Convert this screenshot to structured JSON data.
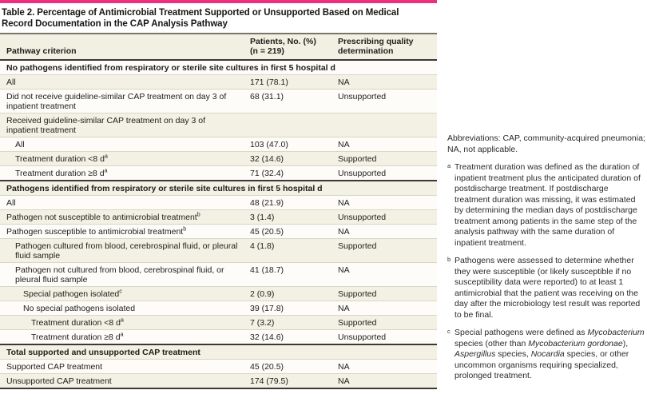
{
  "title": "Table 2. Percentage of Antimicrobial Treatment Supported or Unsupported Based on Medical Record Documentation in the CAP Analysis Pathway",
  "colors": {
    "accent_bar": "#ee2f7f",
    "row_shade_beige": "#f3f1e3",
    "row_shade_white": "#fdfcf8",
    "section_rule": "#3a3935"
  },
  "table": {
    "columns": [
      {
        "label": "Pathway criterion"
      },
      {
        "lines": [
          "Patients, No. (%)",
          "(n = 219)"
        ]
      },
      {
        "lines": [
          "Prescribing quality",
          "determination"
        ]
      }
    ],
    "rows": [
      {
        "type": "section",
        "label": "No pathogens identified from respiratory or sterile site cultures in first 5 hospital d",
        "shade": "white"
      },
      {
        "type": "data",
        "label": "All",
        "sup": "",
        "indent": 0,
        "patients": "171 (78.1)",
        "quality": "NA",
        "shade": "beige"
      },
      {
        "type": "data",
        "label": "Did not receive guideline-similar CAP treatment on day 3 of inpatient treatment",
        "sup": "",
        "indent": 0,
        "patients": "68 (31.1)",
        "quality": "Unsupported",
        "shade": "white"
      },
      {
        "type": "data",
        "label": "Received guideline-similar CAP treatment on day 3 of inpatient treatment",
        "sup": "",
        "indent": 0,
        "patients": "",
        "quality": "",
        "shade": "beige"
      },
      {
        "type": "data",
        "label": "All",
        "sup": "",
        "indent": 1,
        "patients": "103 (47.0)",
        "quality": "NA",
        "shade": "white"
      },
      {
        "type": "data",
        "label": "Treatment duration <8 d",
        "sup": "a",
        "indent": 1,
        "patients": "32 (14.6)",
        "quality": "Supported",
        "shade": "beige"
      },
      {
        "type": "data",
        "label": "Treatment duration ≥8 d",
        "sup": "a",
        "indent": 1,
        "patients": "71 (32.4)",
        "quality": "Unsupported",
        "shade": "white"
      },
      {
        "type": "section",
        "label": "Pathogens identified from respiratory or sterile site cultures in first 5 hospital d",
        "divider": true,
        "shade": "beige"
      },
      {
        "type": "data",
        "label": "All",
        "sup": "",
        "indent": 0,
        "patients": "48 (21.9)",
        "quality": "NA",
        "shade": "white"
      },
      {
        "type": "data",
        "label": "Pathogen not susceptible to antimicrobial treatment",
        "sup": "b",
        "indent": 0,
        "patients": "3 (1.4)",
        "quality": "Unsupported",
        "shade": "beige"
      },
      {
        "type": "data",
        "label": "Pathogen susceptible to antimicrobial treatment",
        "sup": "b",
        "indent": 0,
        "patients": "45 (20.5)",
        "quality": "NA",
        "shade": "white"
      },
      {
        "type": "data",
        "label": "Pathogen cultured from blood, cerebrospinal fluid, or pleural fluid sample",
        "sup": "",
        "indent": 1,
        "patients": "4 (1.8)",
        "quality": "Supported",
        "shade": "beige"
      },
      {
        "type": "data",
        "label": "Pathogen not cultured from blood, cerebrospinal fluid, or pleural fluid sample",
        "sup": "",
        "indent": 1,
        "patients": "41 (18.7)",
        "quality": "NA",
        "shade": "white"
      },
      {
        "type": "data",
        "label": "Special pathogen isolated",
        "sup": "c",
        "indent": 2,
        "patients": "2 (0.9)",
        "quality": "Supported",
        "shade": "beige"
      },
      {
        "type": "data",
        "label": "No special pathogens isolated",
        "sup": "",
        "indent": 2,
        "patients": "39 (17.8)",
        "quality": "NA",
        "shade": "white"
      },
      {
        "type": "data",
        "label": "Treatment duration <8 d",
        "sup": "a",
        "indent": 3,
        "patients": "7 (3.2)",
        "quality": "Supported",
        "shade": "beige"
      },
      {
        "type": "data",
        "label": "Treatment duration ≥8 d",
        "sup": "a",
        "indent": 3,
        "patients": "32 (14.6)",
        "quality": "Unsupported",
        "shade": "white"
      },
      {
        "type": "section",
        "label": "Total supported and unsupported CAP treatment",
        "divider": true,
        "shade": "beige"
      },
      {
        "type": "data",
        "label": "Supported CAP treatment",
        "sup": "",
        "indent": 0,
        "patients": "45 (20.5)",
        "quality": "NA",
        "shade": "white"
      },
      {
        "type": "data",
        "label": "Unsupported CAP treatment",
        "sup": "",
        "indent": 0,
        "patients": "174 (79.5)",
        "quality": "NA",
        "shade": "beige"
      }
    ]
  },
  "footnotes": {
    "abbreviations": "Abbreviations: CAP, community-acquired pneumonia; NA, not applicable.",
    "items": [
      {
        "marker": "a",
        "segments": [
          {
            "t": "Treatment duration was defined as the duration of inpatient treatment plus the anticipated duration of postdischarge treatment. If postdischarge treatment duration was missing, it was estimated by determining the median days of postdischarge treatment among patients in the same step of the analysis pathway with the same duration of inpatient treatment."
          }
        ]
      },
      {
        "marker": "b",
        "segments": [
          {
            "t": "Pathogens were assessed to determine whether they were susceptible (or likely susceptible if no susceptibility data were reported) to at least 1 antimicrobial that the patient was receiving on the day after the microbiology test result was reported to be final."
          }
        ]
      },
      {
        "marker": "c",
        "segments": [
          {
            "t": "Special pathogens were defined as "
          },
          {
            "t": "Mycobacterium",
            "i": true
          },
          {
            "t": " species (other than "
          },
          {
            "t": "Mycobacterium gordonae",
            "i": true
          },
          {
            "t": "), "
          },
          {
            "t": "Aspergillus",
            "i": true
          },
          {
            "t": " species, "
          },
          {
            "t": "Nocardia",
            "i": true
          },
          {
            "t": " species, or other uncommon organisms requiring specialized, prolonged treatment."
          }
        ]
      }
    ]
  }
}
